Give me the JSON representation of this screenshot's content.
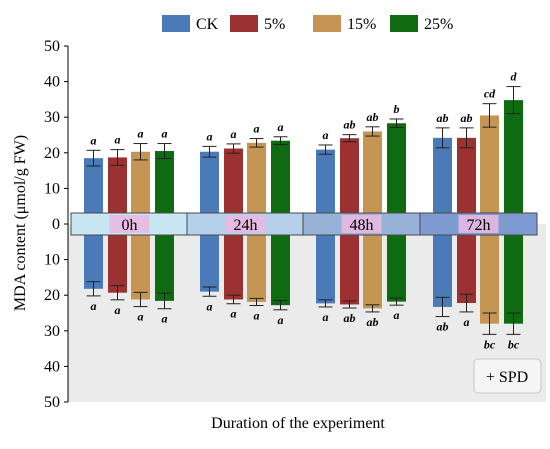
{
  "chart_data": {
    "type": "bar",
    "xlabel": "Duration of the experiment",
    "ylabel": "MDA content (μmol/g FW)",
    "categories": [
      "0h",
      "24h",
      "48h",
      "72h"
    ],
    "series": [
      {
        "name": "CK",
        "color": "#4a7ab8",
        "top_values": [
          18.5,
          20.3,
          20.9,
          24.2
        ],
        "top_errors": [
          2.2,
          1.5,
          1.3,
          2.8
        ],
        "top_letters": [
          "a",
          "a",
          "a",
          "ab"
        ],
        "bottom_values": [
          18.2,
          19.0,
          22.3,
          23.3
        ],
        "bottom_errors": [
          2.0,
          1.3,
          1.0,
          2.7
        ],
        "bottom_letters": [
          "a",
          "a",
          "a",
          "ab"
        ]
      },
      {
        "name": "5%",
        "color": "#9b3231",
        "top_values": [
          18.7,
          21.2,
          24.1,
          24.2
        ],
        "top_errors": [
          2.2,
          1.3,
          1.0,
          2.8
        ],
        "top_letters": [
          "a",
          "a",
          "ab",
          "ab"
        ],
        "bottom_values": [
          19.3,
          21.2,
          22.6,
          22.2
        ],
        "bottom_errors": [
          2.0,
          1.2,
          1.0,
          2.5
        ],
        "bottom_letters": [
          "a",
          "a",
          "ab",
          "a"
        ]
      },
      {
        "name": "15%",
        "color": "#c49553",
        "top_values": [
          20.3,
          22.8,
          26.0,
          30.5
        ],
        "top_errors": [
          2.3,
          1.2,
          1.3,
          3.3
        ],
        "top_letters": [
          "a",
          "a",
          "ab",
          "cd"
        ],
        "bottom_values": [
          21.2,
          21.9,
          23.7,
          28.0
        ],
        "bottom_errors": [
          2.0,
          1.0,
          1.0,
          3.0
        ],
        "bottom_letters": [
          "a",
          "a",
          "ab",
          "bc"
        ]
      },
      {
        "name": "25%",
        "color": "#0f6b12",
        "top_values": [
          20.5,
          23.4,
          28.3,
          34.8
        ],
        "top_errors": [
          2.1,
          1.1,
          1.2,
          3.8
        ],
        "top_letters": [
          "a",
          "a",
          "b",
          "d"
        ],
        "bottom_values": [
          21.6,
          22.8,
          21.8,
          28.0
        ],
        "bottom_errors": [
          2.2,
          1.3,
          1.0,
          3.0
        ],
        "bottom_letters": [
          "a",
          "a",
          "a",
          "bc"
        ]
      }
    ],
    "y_ticks_top": [
      "10",
      "20",
      "30",
      "40",
      "50"
    ],
    "y_ticks_bottom": [
      "10",
      "20",
      "30",
      "40",
      "50"
    ],
    "y_tick_zero": "0",
    "ylim": [
      0,
      50
    ],
    "legend_position": "top",
    "inset_label": "+ SPD",
    "band_colors": [
      "#c9e6f3",
      "#b4d0ea",
      "#97b2d7",
      "#7d9bd0"
    ],
    "band_label_background": "#e9b8e1",
    "lower_panel_background": "#ebebeb"
  }
}
